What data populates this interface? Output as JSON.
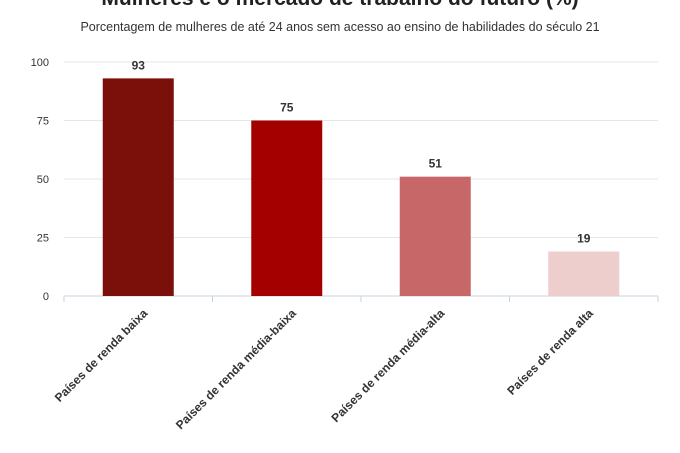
{
  "chart_data": {
    "type": "bar",
    "title": "Mulheres e o mercado de trabalho do futuro (%)",
    "subtitle": "Porcentagem de mulheres de até 24 anos sem acesso ao ensino de habilidades do século 21",
    "categories": [
      "Países de renda baixa",
      "Países de renda média-baixa",
      "Países de renda média-alta",
      "Países de renda alta"
    ],
    "values": [
      93,
      75,
      51,
      19
    ],
    "colors": [
      "#7b0f0a",
      "#a50000",
      "#c76767",
      "#eecdcd"
    ],
    "ylim": [
      0,
      100
    ],
    "yticks": [
      0,
      25,
      50,
      75,
      100
    ],
    "xlabel": "",
    "ylabel": "",
    "grid": true,
    "legend": "none"
  },
  "style": {
    "grid_color": "#e6e6e6",
    "axis_color": "#c9d3e0",
    "label_color": "#333333"
  }
}
